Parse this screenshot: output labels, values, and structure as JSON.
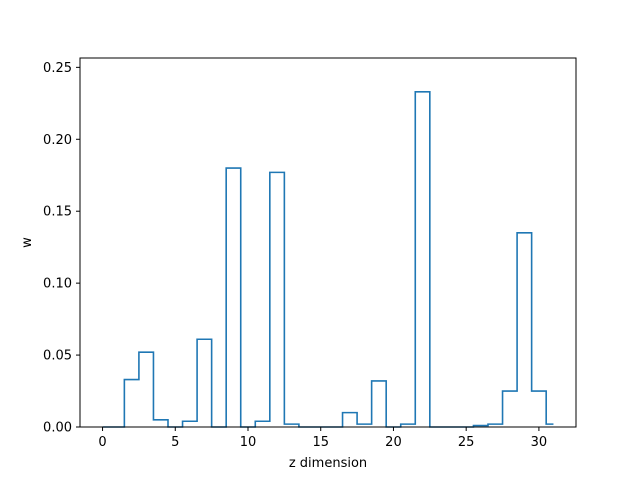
{
  "chart_data": {
    "type": "step",
    "step_where": "mid",
    "title": "",
    "xlabel": "z dimension",
    "ylabel": "w",
    "xlim": [
      -1.55,
      32.55
    ],
    "ylim": [
      0,
      0.2565
    ],
    "xticks": [
      0,
      5,
      10,
      15,
      20,
      25,
      30
    ],
    "yticks": [
      0.0,
      0.05,
      0.1,
      0.15,
      0.2,
      0.25
    ],
    "ytick_labels": [
      "0.00",
      "0.05",
      "0.10",
      "0.15",
      "0.20",
      "0.25"
    ],
    "grid": false,
    "line_color": "#1f77b4",
    "x": [
      0,
      1,
      2,
      3,
      4,
      5,
      6,
      7,
      8,
      9,
      10,
      11,
      12,
      13,
      14,
      15,
      16,
      17,
      18,
      19,
      20,
      21,
      22,
      23,
      24,
      25,
      26,
      27,
      28,
      29,
      30,
      31
    ],
    "values": [
      0.0,
      0.0,
      0.033,
      0.052,
      0.005,
      0.0,
      0.004,
      0.061,
      0.0,
      0.18,
      0.0,
      0.004,
      0.177,
      0.002,
      0.0,
      0.0,
      0.0,
      0.01,
      0.002,
      0.032,
      0.0,
      0.002,
      0.233,
      0.0,
      0.0,
      0.0,
      0.001,
      0.002,
      0.025,
      0.135,
      0.025,
      0.002
    ]
  }
}
